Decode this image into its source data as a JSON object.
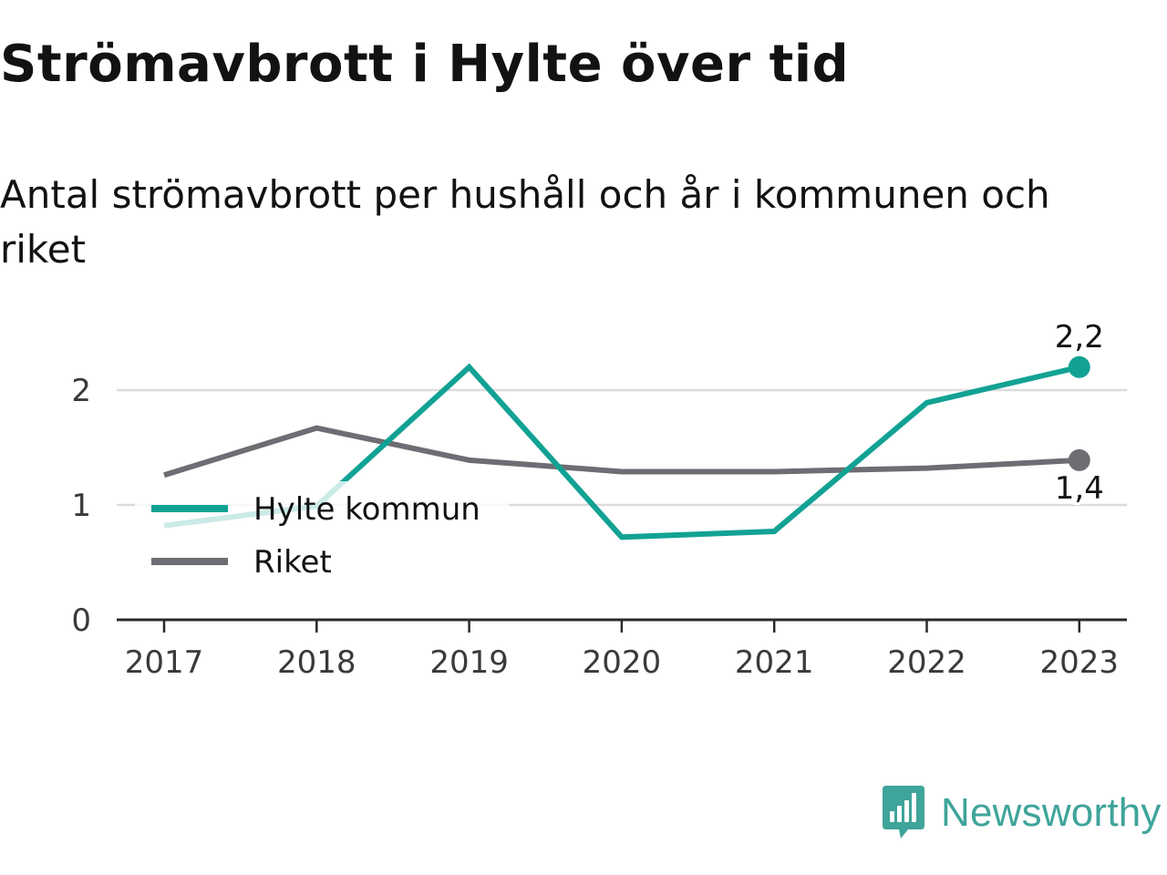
{
  "header": {
    "title": "Strömavbrott i Hylte över tid",
    "subtitle": "Antal strömavbrott per hushåll och år i kommunen och riket"
  },
  "brand": {
    "name": "Newsworthy",
    "icon": "newsworthy-logo-icon",
    "color": "#3fa49a"
  },
  "chart_data": {
    "type": "line",
    "x": [
      2017,
      2018,
      2019,
      2020,
      2021,
      2022,
      2023
    ],
    "series": [
      {
        "name": "Hylte kommun",
        "color": "#12a294",
        "values": [
          0.82,
          0.99,
          2.2,
          0.72,
          0.77,
          1.89,
          2.2
        ],
        "end_label": "2,2"
      },
      {
        "name": "Riket",
        "color": "#6e6d73",
        "values": [
          1.26,
          1.67,
          1.39,
          1.29,
          1.29,
          1.32,
          1.39
        ],
        "end_label": "1,4"
      }
    ],
    "y_ticks": [
      0,
      1,
      2
    ],
    "ylim": [
      0,
      2.2
    ],
    "grid": true,
    "legend": "bottom-left"
  }
}
